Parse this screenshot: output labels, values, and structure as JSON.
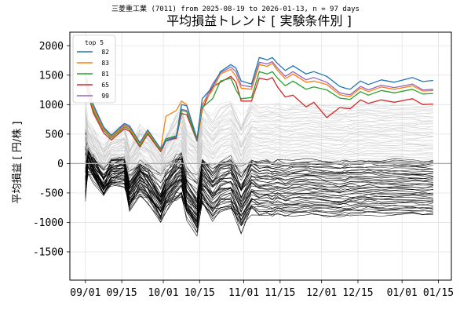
{
  "chart_data": {
    "type": "line",
    "subtitle": "三菱重工業 (7011) from 2025-08-19 to 2026-01-13, n = 97 days",
    "title": "平均損益トレンド [ 実験条件別 ]",
    "ylabel": "平均損益 [ 円/株 ]",
    "xlabel": "",
    "x_ticks": [
      "09/01",
      "09/15",
      "10/01",
      "10/15",
      "11/01",
      "11/15",
      "12/01",
      "12/15",
      "01/01",
      "01/15"
    ],
    "x_tick_dates": [
      "2025-09-01",
      "2025-09-15",
      "2025-10-01",
      "2025-10-15",
      "2025-11-01",
      "2025-11-15",
      "2025-12-01",
      "2025-12-15",
      "2026-01-01",
      "2026-01-15"
    ],
    "xlim": [
      "2025-08-26",
      "2026-01-20"
    ],
    "y_ticks": [
      -1500,
      -1000,
      -500,
      0,
      500,
      1000,
      1500,
      2000
    ],
    "ylim": [
      -1980,
      2230
    ],
    "grid": true,
    "legend": {
      "title": "top 5",
      "placement": "top-left"
    },
    "colors": {
      "82": "#1f77b4",
      "83": "#ff7f0e",
      "81": "#2ca02c",
      "65": "#d62728",
      "99": "#9467bd",
      "others_positive": "#c8c8c8",
      "others_negative": "#000000",
      "zero_line": "#aaaaaa"
    },
    "series": [
      {
        "name": "82",
        "x": [
          "2025-09-01",
          "2025-09-02",
          "2025-09-04",
          "2025-09-08",
          "2025-09-11",
          "2025-09-16",
          "2025-09-18",
          "2025-09-22",
          "2025-09-25",
          "2025-09-30",
          "2025-10-02",
          "2025-10-06",
          "2025-10-08",
          "2025-10-10",
          "2025-10-14",
          "2025-10-16",
          "2025-10-20",
          "2025-10-23",
          "2025-10-27",
          "2025-10-29",
          "2025-10-31",
          "2025-11-04",
          "2025-11-07",
          "2025-11-10",
          "2025-11-12",
          "2025-11-14",
          "2025-11-17",
          "2025-11-20",
          "2025-11-25",
          "2025-11-28",
          "2025-12-03",
          "2025-12-08",
          "2025-12-10",
          "2025-12-12",
          "2025-12-16",
          "2025-12-19",
          "2025-12-24",
          "2025-12-29",
          "2026-01-05",
          "2026-01-09",
          "2026-01-13"
        ],
        "values": [
          1550,
          1350,
          1000,
          620,
          480,
          680,
          640,
          350,
          570,
          250,
          380,
          450,
          1000,
          980,
          420,
          1100,
          1300,
          1560,
          1680,
          1620,
          1400,
          1350,
          1800,
          1760,
          1800,
          1700,
          1580,
          1660,
          1520,
          1560,
          1480,
          1310,
          1280,
          1260,
          1400,
          1340,
          1420,
          1380,
          1460,
          1390,
          1410
        ]
      },
      {
        "name": "83",
        "x": [
          "2025-09-01",
          "2025-09-02",
          "2025-09-04",
          "2025-09-08",
          "2025-09-11",
          "2025-09-16",
          "2025-09-18",
          "2025-09-22",
          "2025-09-25",
          "2025-09-30",
          "2025-10-02",
          "2025-10-06",
          "2025-10-08",
          "2025-10-10",
          "2025-10-14",
          "2025-10-16",
          "2025-10-20",
          "2025-10-23",
          "2025-10-27",
          "2025-10-29",
          "2025-10-31",
          "2025-11-04",
          "2025-11-07",
          "2025-11-10",
          "2025-11-12",
          "2025-11-14",
          "2025-11-17",
          "2025-11-20",
          "2025-11-25",
          "2025-11-28",
          "2025-12-03",
          "2025-12-08",
          "2025-12-10",
          "2025-12-12",
          "2025-12-16",
          "2025-12-19",
          "2025-12-24",
          "2025-12-29",
          "2026-01-05",
          "2026-01-09",
          "2026-01-13"
        ],
        "values": [
          1500,
          1280,
          940,
          580,
          450,
          640,
          600,
          330,
          540,
          240,
          800,
          900,
          1060,
          1000,
          420,
          1000,
          1250,
          1520,
          1600,
          1480,
          1280,
          1260,
          1680,
          1650,
          1700,
          1580,
          1440,
          1520,
          1380,
          1400,
          1340,
          1170,
          1150,
          1140,
          1280,
          1220,
          1300,
          1260,
          1320,
          1230,
          1240
        ]
      },
      {
        "name": "81",
        "x": [
          "2025-09-01",
          "2025-09-02",
          "2025-09-04",
          "2025-09-08",
          "2025-09-11",
          "2025-09-16",
          "2025-09-18",
          "2025-09-22",
          "2025-09-25",
          "2025-09-30",
          "2025-10-02",
          "2025-10-06",
          "2025-10-08",
          "2025-10-10",
          "2025-10-14",
          "2025-10-16",
          "2025-10-20",
          "2025-10-23",
          "2025-10-27",
          "2025-10-29",
          "2025-10-31",
          "2025-11-04",
          "2025-11-07",
          "2025-11-10",
          "2025-11-12",
          "2025-11-14",
          "2025-11-17",
          "2025-11-20",
          "2025-11-25",
          "2025-11-28",
          "2025-12-03",
          "2025-12-08",
          "2025-12-10",
          "2025-12-12",
          "2025-12-16",
          "2025-12-19",
          "2025-12-24",
          "2025-12-29",
          "2026-01-05",
          "2026-01-09",
          "2026-01-13"
        ],
        "values": [
          1470,
          1250,
          900,
          560,
          430,
          620,
          580,
          300,
          520,
          220,
          420,
          470,
          900,
          880,
          400,
          950,
          1100,
          1400,
          1450,
          1250,
          1100,
          1120,
          1560,
          1520,
          1560,
          1450,
          1320,
          1400,
          1260,
          1300,
          1250,
          1110,
          1100,
          1090,
          1220,
          1160,
          1240,
          1200,
          1260,
          1180,
          1190
        ]
      },
      {
        "name": "65",
        "x": [
          "2025-09-01",
          "2025-09-02",
          "2025-09-04",
          "2025-09-08",
          "2025-09-11",
          "2025-09-16",
          "2025-09-18",
          "2025-09-22",
          "2025-09-25",
          "2025-09-30",
          "2025-10-02",
          "2025-10-06",
          "2025-10-08",
          "2025-10-10",
          "2025-10-14",
          "2025-10-16",
          "2025-10-20",
          "2025-10-23",
          "2025-10-27",
          "2025-10-29",
          "2025-10-31",
          "2025-11-04",
          "2025-11-07",
          "2025-11-10",
          "2025-11-12",
          "2025-11-14",
          "2025-11-17",
          "2025-11-20",
          "2025-11-25",
          "2025-11-28",
          "2025-12-03",
          "2025-12-08",
          "2025-12-10",
          "2025-12-12",
          "2025-12-16",
          "2025-12-19",
          "2025-12-24",
          "2025-12-29",
          "2026-01-05",
          "2026-01-09",
          "2026-01-13"
        ],
        "values": [
          1400,
          1180,
          860,
          520,
          400,
          590,
          550,
          280,
          500,
          200,
          380,
          430,
          850,
          830,
          380,
          920,
          1300,
          1380,
          1480,
          1380,
          1060,
          1060,
          1450,
          1420,
          1460,
          1300,
          1130,
          1160,
          960,
          1040,
          780,
          950,
          940,
          930,
          1080,
          1020,
          1080,
          1040,
          1100,
          1000,
          1010
        ]
      },
      {
        "name": "99",
        "x": [
          "2025-09-01",
          "2025-09-02",
          "2025-09-04",
          "2025-09-08",
          "2025-09-11",
          "2025-09-16",
          "2025-09-18",
          "2025-09-22",
          "2025-09-25",
          "2025-09-30",
          "2025-10-02",
          "2025-10-06",
          "2025-10-08",
          "2025-10-10",
          "2025-10-14",
          "2025-10-16",
          "2025-10-20",
          "2025-10-23",
          "2025-10-27",
          "2025-10-29",
          "2025-10-31",
          "2025-11-04",
          "2025-11-07",
          "2025-11-10",
          "2025-11-12",
          "2025-11-14",
          "2025-11-17",
          "2025-11-20",
          "2025-11-25",
          "2025-11-28",
          "2025-12-03",
          "2025-12-08",
          "2025-12-10",
          "2025-12-12",
          "2025-12-16",
          "2025-12-19",
          "2025-12-24",
          "2025-12-29",
          "2026-01-05",
          "2026-01-09",
          "2026-01-13"
        ],
        "values": [
          1520,
          1300,
          960,
          600,
          460,
          660,
          620,
          340,
          560,
          240,
          400,
          460,
          920,
          900,
          410,
          980,
          1350,
          1540,
          1640,
          1560,
          1330,
          1300,
          1720,
          1690,
          1730,
          1620,
          1480,
          1560,
          1420,
          1460,
          1380,
          1200,
          1180,
          1170,
          1310,
          1250,
          1330,
          1290,
          1350,
          1250,
          1260
        ]
      }
    ],
    "background_series": {
      "count": 92,
      "note": "unlabeled condition lines; light gray above zero, black below",
      "x": [
        "2025-09-01",
        "2025-09-02",
        "2025-09-04",
        "2025-09-08",
        "2025-09-11",
        "2025-09-16",
        "2025-09-18",
        "2025-09-22",
        "2025-09-25",
        "2025-09-30",
        "2025-10-02",
        "2025-10-06",
        "2025-10-08",
        "2025-10-10",
        "2025-10-14",
        "2025-10-16",
        "2025-10-20",
        "2025-10-23",
        "2025-10-27",
        "2025-10-29",
        "2025-10-31",
        "2025-11-04",
        "2025-11-07",
        "2025-11-10",
        "2025-11-12",
        "2025-11-14",
        "2025-11-17",
        "2025-11-20",
        "2025-11-25",
        "2025-11-28",
        "2025-12-03",
        "2025-12-08",
        "2025-12-10",
        "2025-12-12",
        "2025-12-16",
        "2025-12-19",
        "2025-12-24",
        "2025-12-29",
        "2026-01-05",
        "2026-01-09",
        "2026-01-13"
      ],
      "final_value_range": [
        -870,
        1000
      ]
    }
  }
}
